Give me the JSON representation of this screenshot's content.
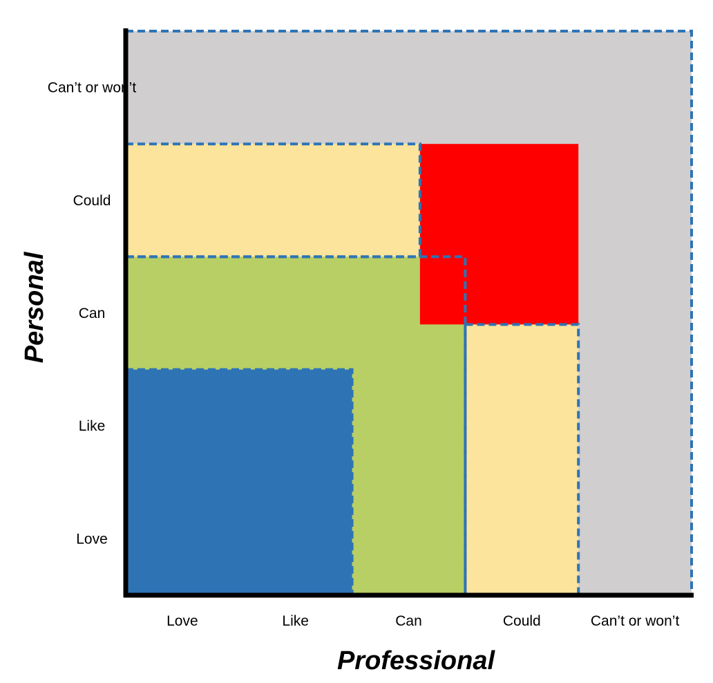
{
  "chart_data": {
    "type": "heatmap",
    "xlabel": "Professional",
    "ylabel": "Personal",
    "x_levels": [
      "Love",
      "Like",
      "Can",
      "Could",
      "Can’t or won’t"
    ],
    "y_levels": [
      "Love",
      "Like",
      "Can",
      "Could",
      "Can’t or won’t"
    ],
    "zones": [
      {
        "name": "cant-or-wont-zone",
        "color": "#d0cece",
        "dashed": true,
        "x_range": [
          0,
          5
        ],
        "y_range": [
          0,
          5
        ]
      },
      {
        "name": "could-zone",
        "color": "#fde49c",
        "dashed": true,
        "x_range": [
          0,
          2.6
        ],
        "y_range": [
          3,
          4
        ]
      },
      {
        "name": "could-zone",
        "color": "#fde49c",
        "dashed": true,
        "x_range": [
          3,
          4
        ],
        "y_range": [
          0,
          2.4
        ]
      },
      {
        "name": "can-zone",
        "color": "#b8cf65",
        "dashed": true,
        "x_range": [
          0,
          3
        ],
        "y_range": [
          0,
          3
        ]
      },
      {
        "name": "love-like-zone",
        "color": "#2e74b5",
        "dashed": true,
        "x_range": [
          0,
          2
        ],
        "y_range": [
          0,
          2
        ]
      },
      {
        "name": "conflict-zone",
        "color": "#ff0000",
        "dashed": false,
        "x_range": [
          2.6,
          4
        ],
        "y_range": [
          2.4,
          4
        ]
      }
    ],
    "grid": false
  },
  "colors": {
    "outline": "#2e74b5",
    "axis": "#000000"
  }
}
